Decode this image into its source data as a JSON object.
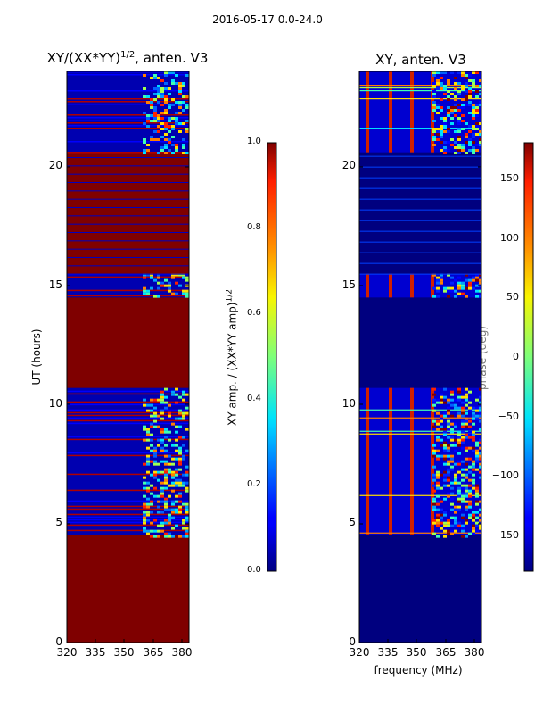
{
  "chart_data": {
    "type": "heatmap",
    "suptitle": "2016-05-17 0.0-24.0",
    "shared_xlabel": "frequency (MHz)",
    "panels": [
      {
        "title": "XY/(XX*YY)",
        "title_sup": "1/2",
        "title_suffix": ", anten. V3",
        "xlim": [
          320,
          383
        ],
        "ylim": [
          0,
          24
        ],
        "xticks": [
          320,
          335,
          350,
          365,
          380
        ],
        "yticks": [
          0,
          5,
          10,
          15,
          20
        ],
        "ylabel": "UT (hours)",
        "colorbar": {
          "label": "XY amp. / (XX*YY amp)",
          "label_sup": "1/2",
          "range": [
            0.0,
            1.0
          ],
          "ticks": [
            "0.0",
            "0.2",
            "0.4",
            "0.6",
            "0.8",
            "1.0"
          ],
          "tick_values": [
            0.0,
            0.2,
            0.4,
            0.6,
            0.8,
            1.0
          ]
        },
        "saturated_ranges_hours": [
          [
            0,
            4.5
          ],
          [
            10.7,
            14.5
          ],
          [
            15.5,
            20.6
          ]
        ]
      },
      {
        "title": "XY, anten. V3",
        "xlim": [
          320,
          383
        ],
        "ylim": [
          0,
          24
        ],
        "xticks": [
          320,
          335,
          350,
          365,
          380
        ],
        "yticks": [
          0,
          5,
          10,
          15,
          20
        ],
        "colorbar": {
          "label": "phase (deg)",
          "range": [
            -180,
            180
          ],
          "ticks": [
            "150",
            "100",
            "50",
            "0",
            "−50",
            "−100",
            "−150"
          ],
          "tick_values": [
            150,
            100,
            50,
            0,
            -50,
            -100,
            -150
          ]
        },
        "empty_ranges_hours": [
          [
            0,
            4.5
          ],
          [
            10.7,
            14.5
          ],
          [
            15.5,
            20.6
          ]
        ]
      }
    ]
  }
}
